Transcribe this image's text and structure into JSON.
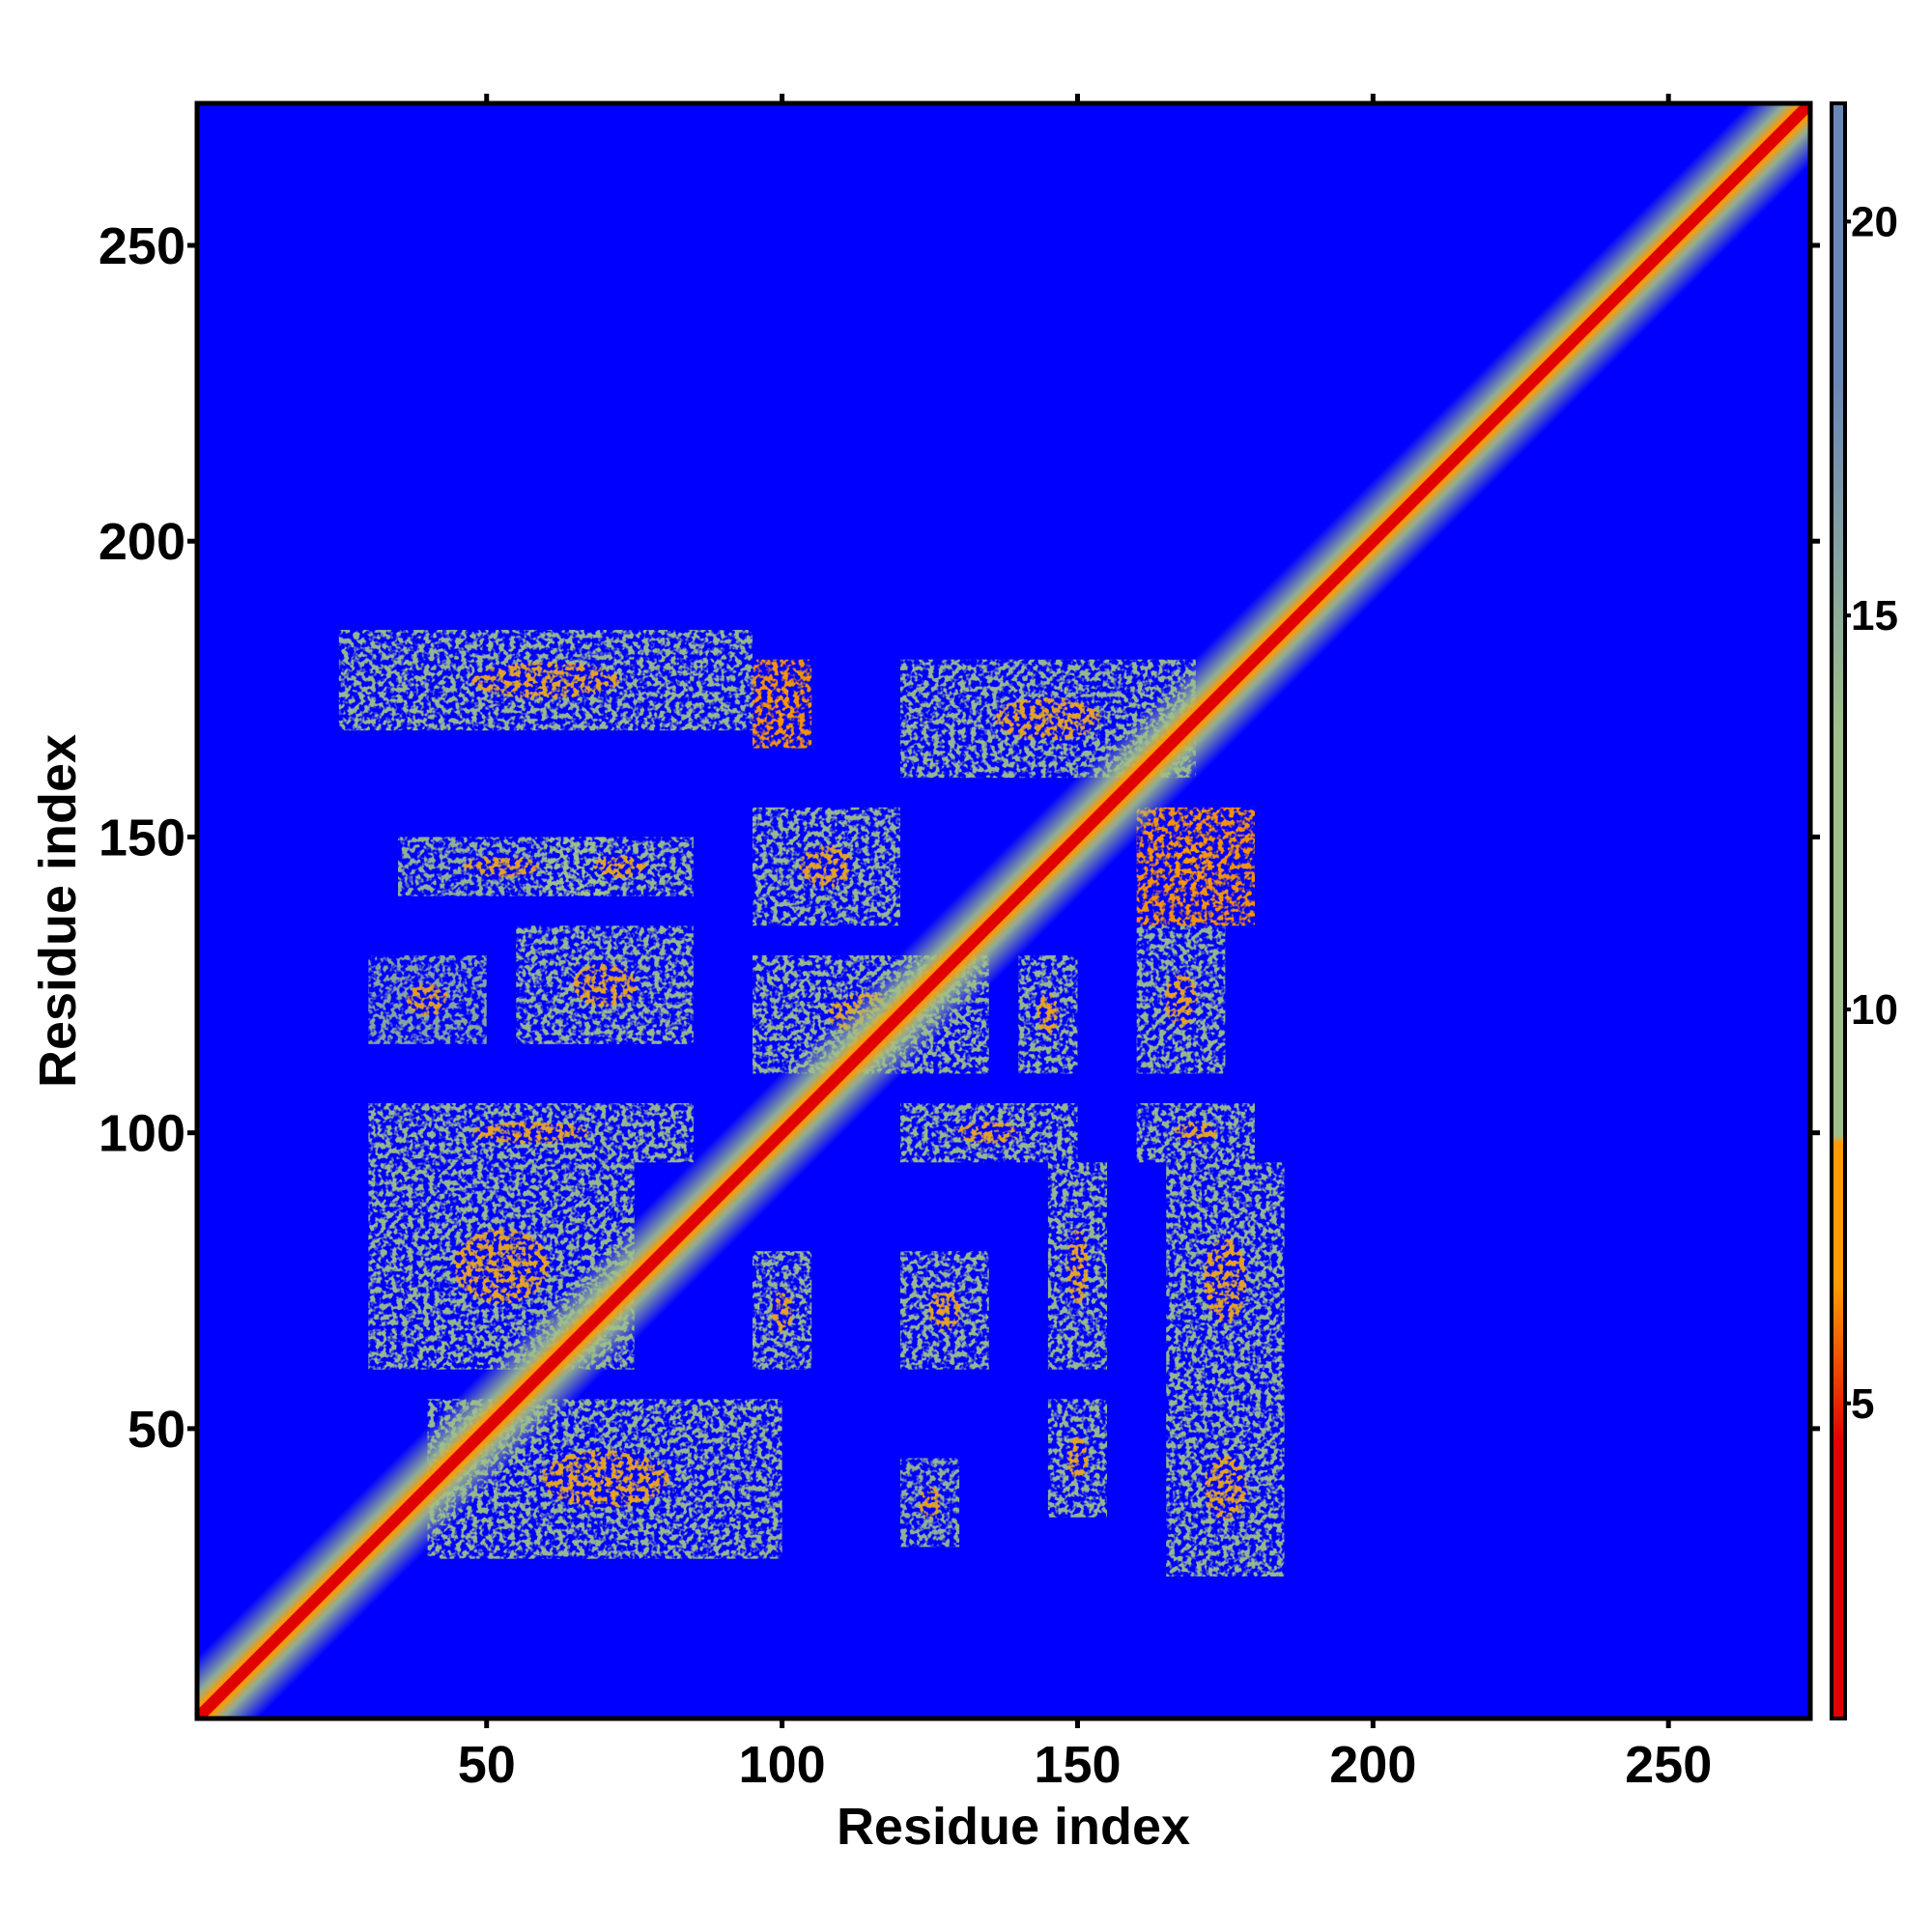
{
  "chart_data": {
    "type": "heatmap",
    "title": "",
    "xlabel": "Residue index",
    "ylabel": "Residue index",
    "xlim": [
      1,
      274
    ],
    "ylim": [
      1,
      274
    ],
    "x_ticks": [
      50,
      100,
      150,
      200,
      250
    ],
    "y_ticks": [
      50,
      100,
      150,
      200,
      250
    ],
    "x_tick_labels": [
      "50",
      "100",
      "150",
      "200",
      "250"
    ],
    "y_tick_labels": [
      "50",
      "100",
      "150",
      "200",
      "250"
    ],
    "colorbar": {
      "range": [
        1,
        21.5
      ],
      "ticks": [
        5,
        10,
        15,
        20
      ],
      "tick_labels": [
        "5",
        "10",
        "15",
        "20"
      ],
      "colors": {
        "low": "#e00000",
        "orange": "#ff9a00",
        "mid": "#9fc08a",
        "high": "#6b86b8",
        "saturated": "#0000ff"
      }
    },
    "background_color": "#0000ff",
    "diagonal_band_value": 2,
    "contact_regions": [
      {
        "x": [
          25,
          95
        ],
        "y": [
          168,
          185
        ],
        "value": 11
      },
      {
        "x": [
          95,
          105
        ],
        "y": [
          165,
          180
        ],
        "value": 8
      },
      {
        "x": [
          120,
          170
        ],
        "y": [
          160,
          180
        ],
        "value": 12
      },
      {
        "x": [
          35,
          70
        ],
        "y": [
          140,
          150
        ],
        "value": 14
      },
      {
        "x": [
          60,
          85
        ],
        "y": [
          140,
          150
        ],
        "value": 13
      },
      {
        "x": [
          95,
          120
        ],
        "y": [
          135,
          155
        ],
        "value": 9
      },
      {
        "x": [
          160,
          180
        ],
        "y": [
          135,
          155
        ],
        "value": 8
      },
      {
        "x": [
          30,
          50
        ],
        "y": [
          115,
          130
        ],
        "value": 15
      },
      {
        "x": [
          55,
          85
        ],
        "y": [
          115,
          135
        ],
        "value": 11
      },
      {
        "x": [
          95,
          135
        ],
        "y": [
          110,
          130
        ],
        "value": 10
      },
      {
        "x": [
          140,
          150
        ],
        "y": [
          110,
          130
        ],
        "value": 12
      },
      {
        "x": [
          160,
          175
        ],
        "y": [
          110,
          135
        ],
        "value": 9
      },
      {
        "x": [
          30,
          85
        ],
        "y": [
          95,
          105
        ],
        "value": 12
      },
      {
        "x": [
          120,
          150
        ],
        "y": [
          95,
          105
        ],
        "value": 9
      },
      {
        "x": [
          160,
          180
        ],
        "y": [
          95,
          105
        ],
        "value": 9
      },
      {
        "x": [
          30,
          75
        ],
        "y": [
          60,
          95
        ],
        "value": 12
      },
      {
        "x": [
          95,
          105
        ],
        "y": [
          60,
          80
        ],
        "value": 10
      },
      {
        "x": [
          120,
          135
        ],
        "y": [
          60,
          80
        ],
        "value": 11
      },
      {
        "x": [
          145,
          155
        ],
        "y": [
          60,
          95
        ],
        "value": 12
      },
      {
        "x": [
          165,
          185
        ],
        "y": [
          55,
          95
        ],
        "value": 11
      },
      {
        "x": [
          40,
          100
        ],
        "y": [
          28,
          55
        ],
        "value": 13
      },
      {
        "x": [
          145,
          155
        ],
        "y": [
          35,
          55
        ],
        "value": 13
      },
      {
        "x": [
          165,
          185
        ],
        "y": [
          25,
          55
        ],
        "value": 9
      },
      {
        "x": [
          120,
          130
        ],
        "y": [
          30,
          45
        ],
        "value": 14
      }
    ]
  }
}
